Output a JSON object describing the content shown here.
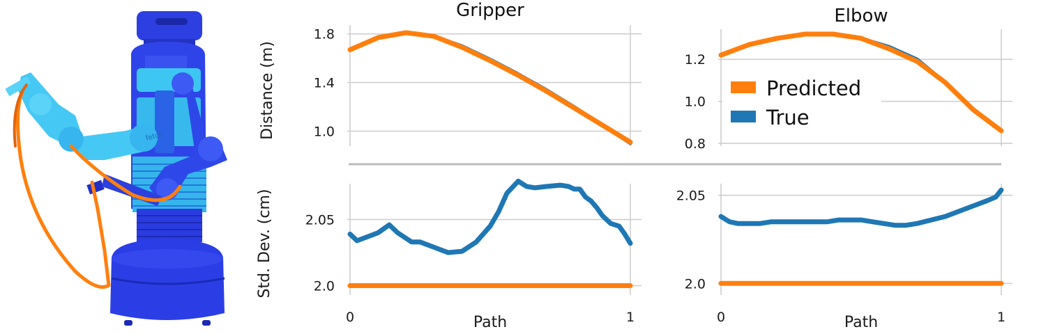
{
  "colors": {
    "predicted": "#ff7f0e",
    "true": "#1f77b4",
    "grid": "#cccccc",
    "divider": "#bbbbbb"
  },
  "figure": {
    "robot_illustration": "robot-arm-with-path-illustration",
    "robot_label": "fetch",
    "legend": {
      "predicted": "Predicted",
      "true": "True"
    },
    "titles": {
      "gripper": "Gripper",
      "elbow": "Elbow"
    },
    "ylabel_top": "Distance (m)",
    "ylabel_bottom": "Std. Dev. (cm)",
    "xlabel_left": "Path",
    "xlabel_right": "Path"
  },
  "chart_data": [
    {
      "id": "gripper-distance",
      "type": "line",
      "title": "Gripper",
      "ylabel": "Distance (m)",
      "xlim": [
        0,
        1
      ],
      "ylim": [
        0.9,
        1.85
      ],
      "yticks": [
        1.0,
        1.4,
        1.8
      ],
      "ytick_labels": [
        "1.0",
        "1.4",
        "1.8"
      ],
      "xticks": [],
      "xtick_labels": [],
      "grid": true,
      "series": [
        {
          "name": "True",
          "x": [
            0,
            0.1,
            0.2,
            0.3,
            0.4,
            0.5,
            0.6,
            0.7,
            0.8,
            0.9,
            1.0
          ],
          "values": [
            1.67,
            1.77,
            1.81,
            1.78,
            1.7,
            1.59,
            1.47,
            1.34,
            1.2,
            1.05,
            0.9
          ]
        },
        {
          "name": "Predicted",
          "x": [
            0,
            0.1,
            0.2,
            0.3,
            0.4,
            0.5,
            0.6,
            0.7,
            0.8,
            0.9,
            1.0
          ],
          "values": [
            1.67,
            1.77,
            1.81,
            1.78,
            1.69,
            1.58,
            1.46,
            1.33,
            1.19,
            1.05,
            0.91
          ]
        }
      ]
    },
    {
      "id": "elbow-distance",
      "type": "line",
      "title": "Elbow",
      "ylabel": "",
      "xlim": [
        0,
        1
      ],
      "ylim": [
        0.8,
        1.33
      ],
      "yticks": [
        0.8,
        1.0,
        1.2
      ],
      "ytick_labels": [
        "0.8",
        "1.0",
        "1.2"
      ],
      "xticks": [],
      "xtick_labels": [],
      "grid": true,
      "series": [
        {
          "name": "True",
          "x": [
            0,
            0.1,
            0.2,
            0.3,
            0.4,
            0.5,
            0.6,
            0.7,
            0.8,
            0.9,
            1.0
          ],
          "values": [
            1.22,
            1.27,
            1.3,
            1.32,
            1.32,
            1.3,
            1.26,
            1.2,
            1.09,
            0.96,
            0.86
          ]
        },
        {
          "name": "Predicted",
          "x": [
            0,
            0.1,
            0.2,
            0.3,
            0.4,
            0.5,
            0.6,
            0.7,
            0.8,
            0.9,
            1.0
          ],
          "values": [
            1.22,
            1.27,
            1.3,
            1.32,
            1.32,
            1.3,
            1.25,
            1.19,
            1.09,
            0.96,
            0.86
          ]
        }
      ]
    },
    {
      "id": "gripper-stddev",
      "type": "line",
      "title": "",
      "ylabel": "Std. Dev. (cm)",
      "xlim": [
        0,
        1
      ],
      "ylim": [
        1.995,
        2.075
      ],
      "yticks": [
        2.0,
        2.05
      ],
      "ytick_labels": [
        "2.0",
        "2.05"
      ],
      "xticks": [
        0,
        1
      ],
      "xtick_labels": [
        "0",
        "1"
      ],
      "xlabel": "Path",
      "grid": true,
      "series": [
        {
          "name": "True",
          "x": [
            0,
            0.025,
            0.05,
            0.1,
            0.14,
            0.17,
            0.22,
            0.25,
            0.3,
            0.35,
            0.4,
            0.45,
            0.5,
            0.53,
            0.56,
            0.6,
            0.63,
            0.66,
            0.7,
            0.75,
            0.78,
            0.8,
            0.82,
            0.84,
            0.86,
            0.88,
            0.9,
            0.93,
            0.96,
            0.98,
            1.0
          ],
          "values": [
            2.039,
            2.034,
            2.036,
            2.04,
            2.046,
            2.04,
            2.033,
            2.033,
            2.029,
            2.025,
            2.026,
            2.033,
            2.045,
            2.056,
            2.07,
            2.079,
            2.075,
            2.074,
            2.075,
            2.076,
            2.075,
            2.073,
            2.073,
            2.067,
            2.064,
            2.059,
            2.053,
            2.047,
            2.045,
            2.039,
            2.032
          ]
        },
        {
          "name": "Predicted",
          "x": [
            0,
            1
          ],
          "values": [
            2.0,
            2.0
          ]
        }
      ]
    },
    {
      "id": "elbow-stddev",
      "type": "line",
      "title": "",
      "ylabel": "",
      "xlim": [
        0,
        1
      ],
      "ylim": [
        1.995,
        2.055
      ],
      "yticks": [
        2.0,
        2.05
      ],
      "ytick_labels": [
        "2.0",
        "2.05"
      ],
      "xticks": [
        0,
        1
      ],
      "xtick_labels": [
        "0",
        "1"
      ],
      "xlabel": "Path",
      "grid": true,
      "series": [
        {
          "name": "True",
          "x": [
            0,
            0.03,
            0.06,
            0.1,
            0.14,
            0.18,
            0.22,
            0.26,
            0.3,
            0.34,
            0.38,
            0.42,
            0.46,
            0.5,
            0.54,
            0.58,
            0.62,
            0.66,
            0.7,
            0.75,
            0.8,
            0.85,
            0.9,
            0.95,
            0.98,
            1.0
          ],
          "values": [
            2.038,
            2.035,
            2.034,
            2.034,
            2.034,
            2.035,
            2.035,
            2.035,
            2.035,
            2.035,
            2.035,
            2.036,
            2.036,
            2.036,
            2.035,
            2.034,
            2.033,
            2.033,
            2.034,
            2.036,
            2.038,
            2.041,
            2.044,
            2.047,
            2.049,
            2.053
          ]
        },
        {
          "name": "Predicted",
          "x": [
            0,
            1
          ],
          "values": [
            2.0,
            2.0
          ]
        }
      ]
    }
  ]
}
